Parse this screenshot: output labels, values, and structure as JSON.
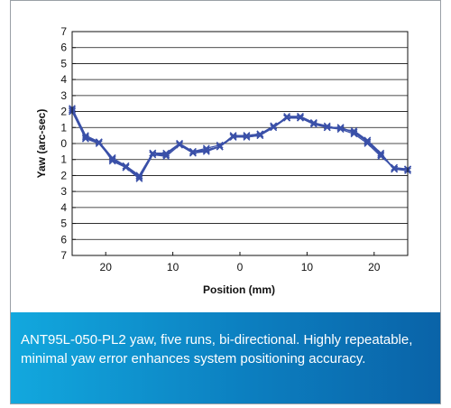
{
  "caption": "ANT95L-050-PL2 yaw, five runs, bi-directional. Highly repeatable, minimal yaw error enhances system positioning accuracy.",
  "colors": {
    "series": "#3a50a8",
    "caption_start": "#12a8de",
    "caption_end": "#0a63a8"
  },
  "chart_data": {
    "type": "line",
    "title": "",
    "xlabel": "Position (mm)",
    "ylabel": "Yaw (arc-sec)",
    "xlim": [
      -25,
      25
    ],
    "ylim": [
      -7,
      7
    ],
    "grid": "horizontal",
    "x_tick_labels": [
      "20",
      "10",
      "0",
      "10",
      "20"
    ],
    "x_tick_values": [
      -20,
      -10,
      0,
      10,
      20
    ],
    "y_tick_labels": [
      "7",
      "6",
      "5",
      "4",
      "3",
      "2",
      "1",
      "0",
      "1",
      "2",
      "3",
      "4",
      "5",
      "6",
      "7"
    ],
    "y_tick_values": [
      7,
      6,
      5,
      4,
      3,
      2,
      1,
      0,
      -1,
      -2,
      -3,
      -4,
      -5,
      -6,
      -7
    ],
    "marker": "x",
    "x": [
      -25,
      -23,
      -21,
      -19,
      -17,
      -15,
      -13,
      -11,
      -9,
      -7,
      -5,
      -3,
      -1,
      1,
      3,
      5,
      7,
      9,
      11,
      13,
      15,
      17,
      19,
      21,
      23,
      25
    ],
    "series": [
      {
        "values": [
          2.1,
          0.4,
          0.1,
          -0.9,
          -1.4,
          -2.0,
          -0.6,
          -0.7,
          0.0,
          -0.5,
          -0.4,
          -0.2,
          0.4,
          0.5,
          0.5,
          1.1,
          1.6,
          1.6,
          1.3,
          1.0,
          1.0,
          0.7,
          0.1,
          -0.7,
          -1.6,
          -1.6
        ]
      },
      {
        "values": [
          2.0,
          0.3,
          0.0,
          -1.0,
          -1.5,
          -2.1,
          -0.7,
          -0.8,
          -0.1,
          -0.6,
          -0.4,
          -0.2,
          0.5,
          0.5,
          0.6,
          1.0,
          1.7,
          1.7,
          1.3,
          1.1,
          0.9,
          0.8,
          0.2,
          -0.6,
          -1.6,
          -1.7
        ]
      },
      {
        "values": [
          2.2,
          0.5,
          0.1,
          -0.9,
          -1.5,
          -2.0,
          -0.6,
          -0.6,
          0.0,
          -0.5,
          -0.3,
          -0.1,
          0.4,
          0.4,
          0.5,
          1.1,
          1.6,
          1.6,
          1.2,
          1.0,
          0.9,
          0.6,
          0.0,
          -0.8,
          -1.5,
          -1.6
        ]
      },
      {
        "values": [
          2.1,
          0.3,
          0.1,
          -1.1,
          -1.5,
          -2.2,
          -0.7,
          -0.7,
          0.0,
          -0.6,
          -0.5,
          -0.2,
          0.5,
          0.4,
          0.5,
          1.0,
          1.6,
          1.7,
          1.3,
          1.0,
          1.0,
          0.7,
          0.1,
          -0.7,
          -1.6,
          -1.6
        ]
      },
      {
        "values": [
          2.0,
          0.4,
          0.0,
          -1.0,
          -1.4,
          -2.0,
          -0.6,
          -0.7,
          0.0,
          -0.5,
          -0.4,
          -0.2,
          0.4,
          0.5,
          0.6,
          1.1,
          1.6,
          1.6,
          1.3,
          1.0,
          1.0,
          0.7,
          0.2,
          -0.7,
          -1.6,
          -1.6
        ]
      }
    ]
  }
}
